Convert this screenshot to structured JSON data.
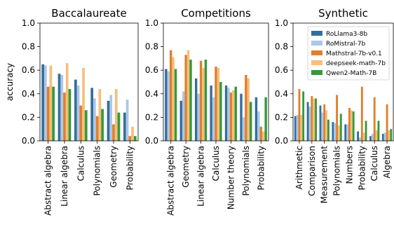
{
  "colors": [
    "#336f9b",
    "#aec7e8",
    "#e07f2c",
    "#f5bf7b",
    "#349a3c"
  ],
  "series_names": [
    "RoLlama3-8b",
    "RoMistral-7b",
    "Mathstral-7b-v0.1",
    "deepseek-math-7b",
    "Qwen2-Math-7B"
  ],
  "y_axis": {
    "label": "accuracy",
    "ticks": [
      "0.0",
      "0.2",
      "0.4",
      "0.6",
      "0.8",
      "1.0"
    ],
    "tick_values": [
      0,
      0.2,
      0.4,
      0.6,
      0.8,
      1.0
    ]
  },
  "chart_data": [
    {
      "type": "bar",
      "title": "Baccalaureate",
      "ylabel": "accuracy",
      "ylim": [
        0,
        1
      ],
      "legend": "none",
      "categories": [
        "Abstract algebra",
        "Linear algebra",
        "Calculus",
        "Polynomials",
        "Geometry",
        "Probability"
      ],
      "series": [
        {
          "name": "RoLlama3-8b",
          "values": [
            0.65,
            0.57,
            0.52,
            0.45,
            0.34,
            0.24
          ]
        },
        {
          "name": "RoMistral-7b",
          "values": [
            0.64,
            0.56,
            0.47,
            0.36,
            0.39,
            0.35
          ]
        },
        {
          "name": "Mathstral-7b-v0.1",
          "values": [
            0.46,
            0.41,
            0.3,
            0.21,
            0.14,
            0.04
          ]
        },
        {
          "name": "deepseek-math-7b",
          "values": [
            0.64,
            0.66,
            0.62,
            0.44,
            0.44,
            0.12
          ]
        },
        {
          "name": "Qwen2-Math-7B",
          "values": [
            0.46,
            0.44,
            0.26,
            0.27,
            0.24,
            0.04
          ]
        }
      ]
    },
    {
      "type": "bar",
      "title": "Competitions",
      "ylabel": "",
      "ylim": [
        0,
        1
      ],
      "legend": "none",
      "categories": [
        "Abstract algebra",
        "Geometry",
        "Linear algebra",
        "Calculus",
        "Number theory",
        "Polynomials",
        "Probability"
      ],
      "series": [
        {
          "name": "RoLlama3-8b",
          "values": [
            0.61,
            0.34,
            0.53,
            0.47,
            0.47,
            0.4,
            0.37
          ]
        },
        {
          "name": "RoMistral-7b",
          "values": [
            0.59,
            0.42,
            0.4,
            0.37,
            0.45,
            0.2,
            0.25
          ]
        },
        {
          "name": "Mathstral-7b-v0.1",
          "values": [
            0.77,
            0.73,
            0.68,
            0.63,
            0.41,
            0.56,
            0.12
          ]
        },
        {
          "name": "deepseek-math-7b",
          "values": [
            0.71,
            0.77,
            0.62,
            0.62,
            0.43,
            0.53,
            0.08
          ]
        },
        {
          "name": "Qwen2-Math-7B",
          "values": [
            0.61,
            0.69,
            0.69,
            0.5,
            0.46,
            0.33,
            0.37
          ]
        }
      ]
    },
    {
      "type": "bar",
      "title": "Synthetic",
      "ylabel": "",
      "ylim": [
        0,
        1
      ],
      "legend": "top-right",
      "categories": [
        "Arithmetic",
        "Comparison",
        "Measurement",
        "Polynomials",
        "Numbers",
        "Probability",
        "Calculus",
        "Algebra"
      ],
      "series": [
        {
          "name": "RoLlama3-8b",
          "values": [
            0.21,
            0.33,
            0.3,
            0.16,
            0.14,
            0.08,
            0.04,
            0.06
          ]
        },
        {
          "name": "RoMistral-7b",
          "values": [
            0.22,
            0.29,
            0.24,
            0.15,
            0.14,
            0.03,
            0.06,
            0.07
          ]
        },
        {
          "name": "Mathstral-7b-v0.1",
          "values": [
            0.44,
            0.38,
            0.31,
            0.39,
            0.28,
            0.46,
            0.37,
            0.31
          ]
        },
        {
          "name": "deepseek-math-7b",
          "values": [
            0.22,
            0.36,
            0.26,
            0.13,
            0.26,
            0.07,
            0.09,
            0.09
          ]
        },
        {
          "name": "Qwen2-Math-7B",
          "values": [
            0.42,
            0.36,
            0.18,
            0.23,
            0.25,
            0.17,
            0.17,
            0.1
          ]
        }
      ]
    }
  ]
}
